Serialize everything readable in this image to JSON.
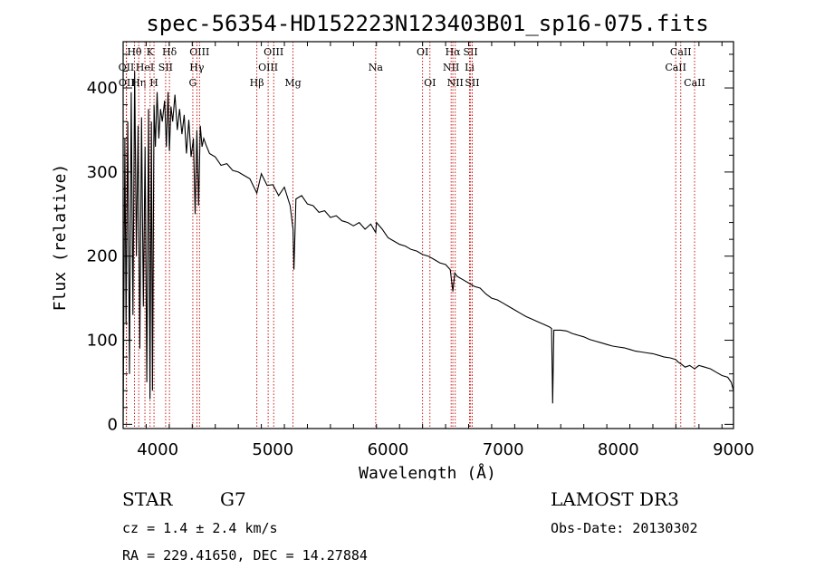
{
  "chart_data": {
    "type": "line",
    "title": "spec-56354-HD152223N123403B01_sp16-075.fits",
    "xlabel": "Wavelength (Å)",
    "ylabel": "Flux (relative)",
    "xlim": [
      3700,
      9000
    ],
    "ylim": [
      -5,
      455
    ],
    "xticks": [
      4000,
      5000,
      6000,
      7000,
      8000,
      9000
    ],
    "yticks": [
      0,
      100,
      200,
      300,
      400
    ],
    "series": [
      {
        "name": "flux",
        "x": [
          3700,
          3715,
          3725,
          3740,
          3755,
          3770,
          3785,
          3800,
          3815,
          3830,
          3845,
          3860,
          3875,
          3890,
          3905,
          3920,
          3933,
          3945,
          3955,
          3968,
          3980,
          3995,
          4010,
          4025,
          4040,
          4060,
          4075,
          4090,
          4102,
          4115,
          4130,
          4150,
          4170,
          4190,
          4210,
          4230,
          4250,
          4270,
          4290,
          4310,
          4325,
          4340,
          4355,
          4370,
          4385,
          4400,
          4420,
          4450,
          4500,
          4550,
          4600,
          4650,
          4700,
          4750,
          4800,
          4861,
          4900,
          4950,
          5000,
          5050,
          5100,
          5150,
          5175,
          5183,
          5200,
          5250,
          5300,
          5350,
          5400,
          5450,
          5500,
          5550,
          5600,
          5650,
          5700,
          5750,
          5800,
          5850,
          5893,
          5900,
          5950,
          6000,
          6050,
          6100,
          6150,
          6200,
          6250,
          6300,
          6350,
          6400,
          6450,
          6500,
          6540,
          6563,
          6580,
          6600,
          6650,
          6700,
          6750,
          6800,
          6850,
          6900,
          6950,
          7000,
          7050,
          7100,
          7150,
          7200,
          7250,
          7300,
          7350,
          7400,
          7420,
          7430,
          7440,
          7500,
          7550,
          7600,
          7650,
          7700,
          7750,
          7800,
          7850,
          7900,
          7950,
          8000,
          8050,
          8100,
          8150,
          8200,
          8250,
          8300,
          8350,
          8400,
          8450,
          8498,
          8520,
          8542,
          8580,
          8620,
          8662,
          8700,
          8750,
          8800,
          8850,
          8900,
          8950,
          8980,
          9000,
          9000
        ],
        "values": [
          0,
          340,
          120,
          360,
          60,
          395,
          130,
          420,
          200,
          355,
          90,
          365,
          140,
          330,
          50,
          375,
          30,
          360,
          40,
          380,
          330,
          395,
          340,
          375,
          360,
          385,
          330,
          395,
          325,
          378,
          360,
          392,
          350,
          375,
          345,
          368,
          322,
          362,
          318,
          340,
          250,
          350,
          260,
          355,
          330,
          340,
          332,
          322,
          318,
          308,
          310,
          302,
          300,
          296,
          292,
          275,
          298,
          284,
          285,
          272,
          282,
          260,
          232,
          184,
          268,
          272,
          262,
          260,
          252,
          254,
          246,
          248,
          242,
          240,
          236,
          240,
          232,
          238,
          228,
          240,
          232,
          222,
          218,
          214,
          212,
          208,
          206,
          202,
          200,
          196,
          192,
          190,
          184,
          158,
          180,
          176,
          172,
          168,
          164,
          162,
          155,
          150,
          148,
          144,
          140,
          136,
          132,
          128,
          125,
          122,
          119,
          116,
          114,
          25,
          112,
          112,
          111,
          108,
          106,
          104,
          101,
          99,
          97,
          95,
          93,
          92,
          91,
          89,
          87,
          86,
          85,
          84,
          82,
          80,
          79,
          77,
          74,
          72,
          68,
          70,
          66,
          70,
          68,
          66,
          62,
          58,
          56,
          50,
          40,
          0
        ]
      }
    ],
    "lines": [
      {
        "label": "Hθ",
        "x": 3798,
        "row": 1
      },
      {
        "label": "Hη",
        "x": 3835,
        "row": 3
      },
      {
        "label": "OII",
        "x": 3727,
        "row": 2
      },
      {
        "label": "OII",
        "x": 3729,
        "row": 3
      },
      {
        "label": "HeI",
        "x": 3889,
        "row": 2
      },
      {
        "label": "K",
        "x": 3934,
        "row": 1
      },
      {
        "label": "H",
        "x": 3968,
        "row": 3
      },
      {
        "label": "SII",
        "x": 4069,
        "row": 2
      },
      {
        "label": "Hδ",
        "x": 4102,
        "row": 1
      },
      {
        "label": "OIII",
        "x": 4363,
        "row": 1
      },
      {
        "label": "Hγ",
        "x": 4340,
        "row": 2
      },
      {
        "label": "G",
        "x": 4305,
        "row": 3
      },
      {
        "label": "Hβ",
        "x": 4861,
        "row": 3
      },
      {
        "label": "OIII",
        "x": 4959,
        "row": 2
      },
      {
        "label": "OIII",
        "x": 5007,
        "row": 1
      },
      {
        "label": "Mg",
        "x": 5175,
        "row": 3
      },
      {
        "label": "Na",
        "x": 5893,
        "row": 2
      },
      {
        "label": "OI",
        "x": 6300,
        "row": 1
      },
      {
        "label": "OI",
        "x": 6364,
        "row": 3
      },
      {
        "label": "Hα",
        "x": 6563,
        "row": 1
      },
      {
        "label": "NII",
        "x": 6548,
        "row": 2
      },
      {
        "label": "NII",
        "x": 6584,
        "row": 3
      },
      {
        "label": "SII",
        "x": 6717,
        "row": 1
      },
      {
        "label": "Li",
        "x": 6708,
        "row": 2
      },
      {
        "label": "SII",
        "x": 6731,
        "row": 3
      },
      {
        "label": "CaII",
        "x": 8498,
        "row": 2
      },
      {
        "label": "CaII",
        "x": 8542,
        "row": 1
      },
      {
        "label": "CaII",
        "x": 8662,
        "row": 3
      }
    ]
  },
  "info": {
    "object_class": "STAR",
    "subclass": "G7",
    "redshift": "cz = 1.4 ± 2.4 km/s",
    "coords": "RA = 229.41650, DEC =  14.27884",
    "survey": "LAMOST DR3",
    "obs_date": "Obs-Date: 20130302"
  }
}
